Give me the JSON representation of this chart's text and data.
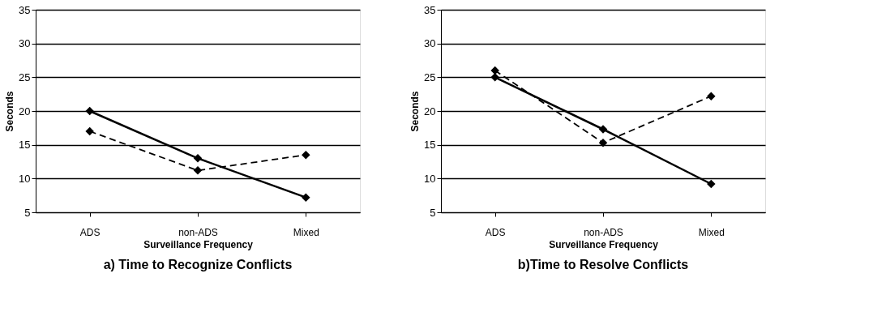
{
  "chart_data": [
    {
      "type": "line",
      "title": "a) Time to Recognize Conflicts",
      "xlabel": "Surveillance Frequency",
      "ylabel": "Seconds",
      "categories": [
        "ADS",
        "non-ADS",
        "Mixed"
      ],
      "ylim": [
        5,
        35
      ],
      "yticks": [
        5,
        10,
        15,
        20,
        25,
        30,
        35
      ],
      "grid": "y",
      "marker": "diamond",
      "series": [
        {
          "color": "#000000",
          "line_style": "solid",
          "values": [
            20,
            13,
            7.2
          ]
        },
        {
          "color": "#000000",
          "line_style": "dashed",
          "values": [
            17,
            11.2,
            13.5
          ]
        }
      ]
    },
    {
      "type": "line",
      "title": "b)Time to Resolve Conflicts",
      "xlabel": "Surveillance Frequency",
      "ylabel": "Seconds",
      "categories": [
        "ADS",
        "non-ADS",
        "Mixed"
      ],
      "ylim": [
        5,
        35
      ],
      "yticks": [
        5,
        10,
        15,
        20,
        25,
        30,
        35
      ],
      "grid": "y",
      "marker": "diamond",
      "series": [
        {
          "color": "#000000",
          "line_style": "solid",
          "values": [
            25,
            17.3,
            9.2
          ]
        },
        {
          "color": "#000000",
          "line_style": "dashed",
          "values": [
            26,
            15.3,
            22.2
          ]
        }
      ]
    }
  ]
}
